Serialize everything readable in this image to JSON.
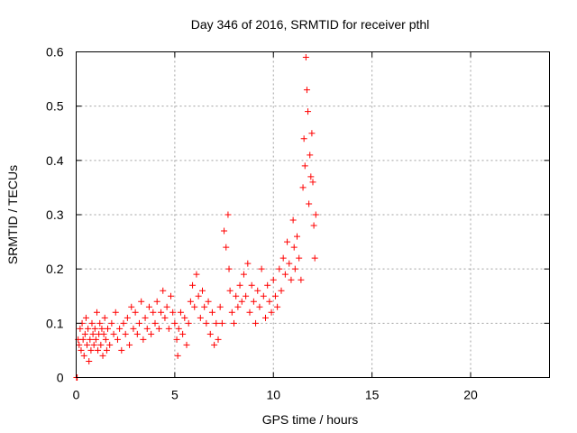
{
  "chart_data": {
    "type": "scatter",
    "title": "Day 346 of 2016, SRMTID for receiver pthl",
    "xlabel": "GPS time / hours",
    "ylabel": "SRMTID / TECUs",
    "xlim": [
      0,
      24
    ],
    "ylim": [
      0,
      0.6
    ],
    "xticks": [
      0,
      5,
      10,
      15,
      20
    ],
    "yticks": [
      0,
      0.1,
      0.2,
      0.3,
      0.4,
      0.5,
      0.6
    ],
    "grid": true,
    "marker": "+",
    "color": "#ff0000",
    "series": [
      {
        "name": "SRMTID",
        "points": [
          [
            0.02,
            0.0
          ],
          [
            0.05,
            0.0
          ],
          [
            0.1,
            0.07
          ],
          [
            0.15,
            0.06
          ],
          [
            0.2,
            0.09
          ],
          [
            0.25,
            0.05
          ],
          [
            0.3,
            0.1
          ],
          [
            0.35,
            0.07
          ],
          [
            0.4,
            0.04
          ],
          [
            0.45,
            0.08
          ],
          [
            0.5,
            0.11
          ],
          [
            0.55,
            0.06
          ],
          [
            0.6,
            0.09
          ],
          [
            0.65,
            0.03
          ],
          [
            0.7,
            0.07
          ],
          [
            0.75,
            0.05
          ],
          [
            0.8,
            0.1
          ],
          [
            0.85,
            0.08
          ],
          [
            0.9,
            0.06
          ],
          [
            0.95,
            0.09
          ],
          [
            1.0,
            0.07
          ],
          [
            1.05,
            0.12
          ],
          [
            1.1,
            0.05
          ],
          [
            1.15,
            0.08
          ],
          [
            1.2,
            0.1
          ],
          [
            1.25,
            0.06
          ],
          [
            1.3,
            0.09
          ],
          [
            1.35,
            0.04
          ],
          [
            1.4,
            0.08
          ],
          [
            1.45,
            0.11
          ],
          [
            1.5,
            0.07
          ],
          [
            1.55,
            0.05
          ],
          [
            1.6,
            0.09
          ],
          [
            1.7,
            0.06
          ],
          [
            1.8,
            0.1
          ],
          [
            1.9,
            0.08
          ],
          [
            2.0,
            0.12
          ],
          [
            2.1,
            0.07
          ],
          [
            2.2,
            0.09
          ],
          [
            2.3,
            0.05
          ],
          [
            2.4,
            0.1
          ],
          [
            2.5,
            0.08
          ],
          [
            2.6,
            0.11
          ],
          [
            2.7,
            0.06
          ],
          [
            2.8,
            0.13
          ],
          [
            2.9,
            0.09
          ],
          [
            3.0,
            0.12
          ],
          [
            3.1,
            0.08
          ],
          [
            3.2,
            0.1
          ],
          [
            3.3,
            0.14
          ],
          [
            3.4,
            0.07
          ],
          [
            3.5,
            0.11
          ],
          [
            3.6,
            0.09
          ],
          [
            3.7,
            0.13
          ],
          [
            3.8,
            0.08
          ],
          [
            3.9,
            0.12
          ],
          [
            4.0,
            0.1
          ],
          [
            4.1,
            0.14
          ],
          [
            4.2,
            0.09
          ],
          [
            4.3,
            0.12
          ],
          [
            4.4,
            0.16
          ],
          [
            4.5,
            0.11
          ],
          [
            4.6,
            0.13
          ],
          [
            4.7,
            0.09
          ],
          [
            4.8,
            0.15
          ],
          [
            4.9,
            0.12
          ],
          [
            5.0,
            0.1
          ],
          [
            5.1,
            0.07
          ],
          [
            5.15,
            0.04
          ],
          [
            5.2,
            0.09
          ],
          [
            5.3,
            0.12
          ],
          [
            5.4,
            0.08
          ],
          [
            5.5,
            0.11
          ],
          [
            5.6,
            0.06
          ],
          [
            5.7,
            0.1
          ],
          [
            5.8,
            0.14
          ],
          [
            5.9,
            0.17
          ],
          [
            6.0,
            0.13
          ],
          [
            6.1,
            0.19
          ],
          [
            6.2,
            0.15
          ],
          [
            6.3,
            0.11
          ],
          [
            6.4,
            0.16
          ],
          [
            6.5,
            0.13
          ],
          [
            6.6,
            0.1
          ],
          [
            6.7,
            0.14
          ],
          [
            6.8,
            0.08
          ],
          [
            6.9,
            0.12
          ],
          [
            7.0,
            0.06
          ],
          [
            7.1,
            0.1
          ],
          [
            7.2,
            0.07
          ],
          [
            7.3,
            0.13
          ],
          [
            7.4,
            0.1
          ],
          [
            7.5,
            0.27
          ],
          [
            7.6,
            0.24
          ],
          [
            7.7,
            0.3
          ],
          [
            7.75,
            0.2
          ],
          [
            7.8,
            0.16
          ],
          [
            7.9,
            0.12
          ],
          [
            8.0,
            0.1
          ],
          [
            8.1,
            0.15
          ],
          [
            8.2,
            0.13
          ],
          [
            8.3,
            0.17
          ],
          [
            8.4,
            0.14
          ],
          [
            8.5,
            0.19
          ],
          [
            8.6,
            0.15
          ],
          [
            8.7,
            0.21
          ],
          [
            8.8,
            0.12
          ],
          [
            8.9,
            0.17
          ],
          [
            9.0,
            0.14
          ],
          [
            9.1,
            0.1
          ],
          [
            9.2,
            0.16
          ],
          [
            9.3,
            0.13
          ],
          [
            9.4,
            0.2
          ],
          [
            9.5,
            0.15
          ],
          [
            9.6,
            0.11
          ],
          [
            9.7,
            0.17
          ],
          [
            9.8,
            0.14
          ],
          [
            9.9,
            0.12
          ],
          [
            10.0,
            0.18
          ],
          [
            10.1,
            0.15
          ],
          [
            10.2,
            0.13
          ],
          [
            10.3,
            0.2
          ],
          [
            10.4,
            0.16
          ],
          [
            10.5,
            0.22
          ],
          [
            10.6,
            0.19
          ],
          [
            10.7,
            0.25
          ],
          [
            10.8,
            0.21
          ],
          [
            10.9,
            0.18
          ],
          [
            11.0,
            0.29
          ],
          [
            11.05,
            0.24
          ],
          [
            11.1,
            0.2
          ],
          [
            11.2,
            0.26
          ],
          [
            11.3,
            0.22
          ],
          [
            11.4,
            0.18
          ],
          [
            11.5,
            0.35
          ],
          [
            11.55,
            0.44
          ],
          [
            11.6,
            0.39
          ],
          [
            11.65,
            0.59
          ],
          [
            11.7,
            0.53
          ],
          [
            11.75,
            0.49
          ],
          [
            11.8,
            0.32
          ],
          [
            11.85,
            0.41
          ],
          [
            11.9,
            0.37
          ],
          [
            11.95,
            0.45
          ],
          [
            12.0,
            0.36
          ],
          [
            12.05,
            0.28
          ],
          [
            12.1,
            0.22
          ],
          [
            12.15,
            0.3
          ]
        ]
      }
    ]
  }
}
